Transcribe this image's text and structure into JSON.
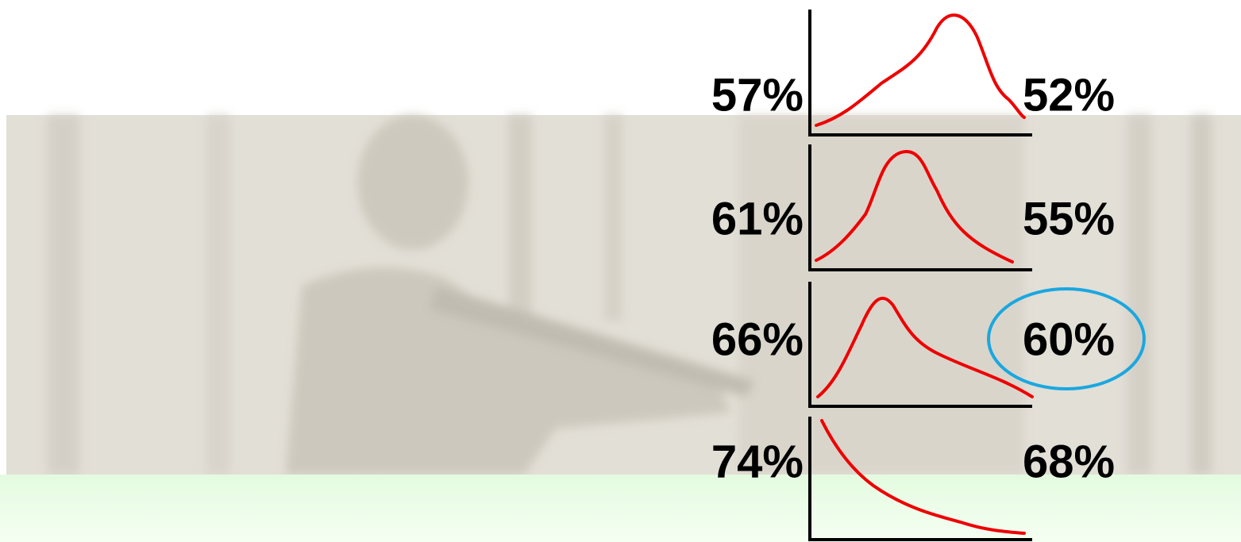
{
  "rows": [
    {
      "left": "57%",
      "right": "52%"
    },
    {
      "left": "61%",
      "right": "55%"
    },
    {
      "left": "66%",
      "right": "60%"
    },
    {
      "left": "74%",
      "right": "68%"
    }
  ]
}
